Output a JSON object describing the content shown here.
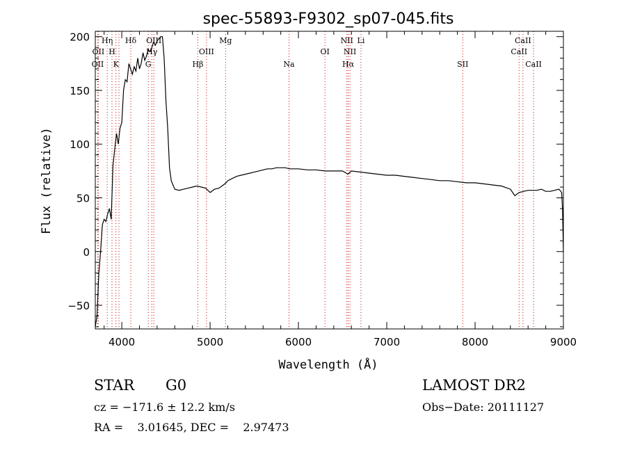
{
  "chart_data": {
    "type": "line",
    "title": "spec-55893-F9302_sp07-045.fits",
    "xlabel": "Wavelength (Å)",
    "ylabel": "Flux (relative)",
    "xlim": [
      3700,
      9000
    ],
    "ylim": [
      -72,
      205
    ],
    "xticks": [
      4000,
      5000,
      6000,
      7000,
      8000,
      9000
    ],
    "yticks": [
      -50,
      0,
      50,
      100,
      150,
      200
    ],
    "line_color": "#000000",
    "marker_color": "#cc0000",
    "series": [
      {
        "x": [
          3700,
          3720,
          3740,
          3760,
          3780,
          3800,
          3820,
          3840,
          3860,
          3880,
          3900,
          3920,
          3940,
          3960,
          3980,
          4000,
          4020,
          4040,
          4060,
          4080,
          4100,
          4120,
          4140,
          4160,
          4180,
          4200,
          4220,
          4240,
          4260,
          4280,
          4300,
          4320,
          4340,
          4360,
          4380,
          4400,
          4420,
          4440,
          4460,
          4480,
          4500,
          4520,
          4540,
          4560,
          4580,
          4600,
          4650,
          4700,
          4750,
          4800,
          4850,
          4900,
          4950,
          5000,
          5050,
          5100,
          5150,
          5180,
          5200,
          5250,
          5300,
          5350,
          5400,
          5450,
          5500,
          5550,
          5600,
          5650,
          5700,
          5750,
          5800,
          5850,
          5900,
          5950,
          6000,
          6100,
          6200,
          6300,
          6400,
          6500,
          6560,
          6600,
          6700,
          6800,
          6900,
          7000,
          7100,
          7200,
          7300,
          7400,
          7500,
          7600,
          7700,
          7800,
          7900,
          8000,
          8100,
          8200,
          8300,
          8400,
          8450,
          8500,
          8550,
          8600,
          8650,
          8700,
          8750,
          8800,
          8850,
          8900,
          8950,
          8980,
          8990,
          9000
        ],
        "values": [
          -70,
          -60,
          -20,
          0,
          25,
          30,
          28,
          35,
          40,
          30,
          80,
          95,
          110,
          100,
          115,
          120,
          150,
          160,
          158,
          175,
          170,
          165,
          172,
          168,
          180,
          170,
          175,
          185,
          178,
          182,
          188,
          186,
          190,
          195,
          192,
          196,
          198,
          200,
          200,
          180,
          140,
          115,
          78,
          66,
          62,
          58,
          57,
          58,
          59,
          60,
          61,
          60,
          59,
          55,
          58,
          59,
          62,
          64,
          66,
          68,
          70,
          71,
          72,
          73,
          74,
          75,
          76,
          77,
          77,
          78,
          78,
          78,
          77,
          77,
          77,
          76,
          76,
          75,
          75,
          75,
          72,
          75,
          74,
          73,
          72,
          71,
          71,
          70,
          69,
          68,
          67,
          66,
          66,
          65,
          64,
          64,
          63,
          62,
          61,
          58,
          52,
          55,
          56,
          57,
          57,
          57,
          58,
          56,
          56,
          57,
          58,
          55,
          40,
          0
        ]
      }
    ],
    "lines": [
      {
        "wl": 3727,
        "label": "OII",
        "row": 2
      },
      {
        "wl": 3734,
        "label": "OII",
        "row": 1
      },
      {
        "wl": 3835,
        "label": "Hη",
        "row": 0
      },
      {
        "wl": 3889,
        "label": "H",
        "row": 1
      },
      {
        "wl": 3934,
        "label": "K",
        "row": 2
      },
      {
        "wl": 3968,
        "label": "",
        "row": 0
      },
      {
        "wl": 4102,
        "label": "Hδ",
        "row": 0
      },
      {
        "wl": 4300,
        "label": "G",
        "row": 2
      },
      {
        "wl": 4340,
        "label": "Hγ",
        "row": 1
      },
      {
        "wl": 4363,
        "label": "OIII",
        "row": 0
      },
      {
        "wl": 4861,
        "label": "Hβ",
        "row": 2
      },
      {
        "wl": 4959,
        "label": "OIII",
        "row": 1
      },
      {
        "wl": 5175,
        "label": "Mg",
        "row": 0
      },
      {
        "wl": 5893,
        "label": "Na",
        "row": 2
      },
      {
        "wl": 6300,
        "label": "OI",
        "row": 1
      },
      {
        "wl": 6548,
        "label": "NII",
        "row": 0
      },
      {
        "wl": 6563,
        "label": "Hα",
        "row": 2
      },
      {
        "wl": 6583,
        "label": "NII",
        "row": 1
      },
      {
        "wl": 6708,
        "label": "Li",
        "row": 0
      },
      {
        "wl": 7860,
        "label": "SII",
        "row": 2
      },
      {
        "wl": 8498,
        "label": "CaII",
        "row": 1
      },
      {
        "wl": 8542,
        "label": "CaII",
        "row": 0
      },
      {
        "wl": 8662,
        "label": "CaII",
        "row": 2
      }
    ]
  },
  "info": {
    "class": "STAR",
    "subclass": "G0",
    "cz": "cz = −171.6 ± 12.2 km/s",
    "coords": "RA =    3.01645, DEC =    2.97473",
    "survey": "LAMOST DR2",
    "obs_date": "Obs−Date: 20111127"
  }
}
